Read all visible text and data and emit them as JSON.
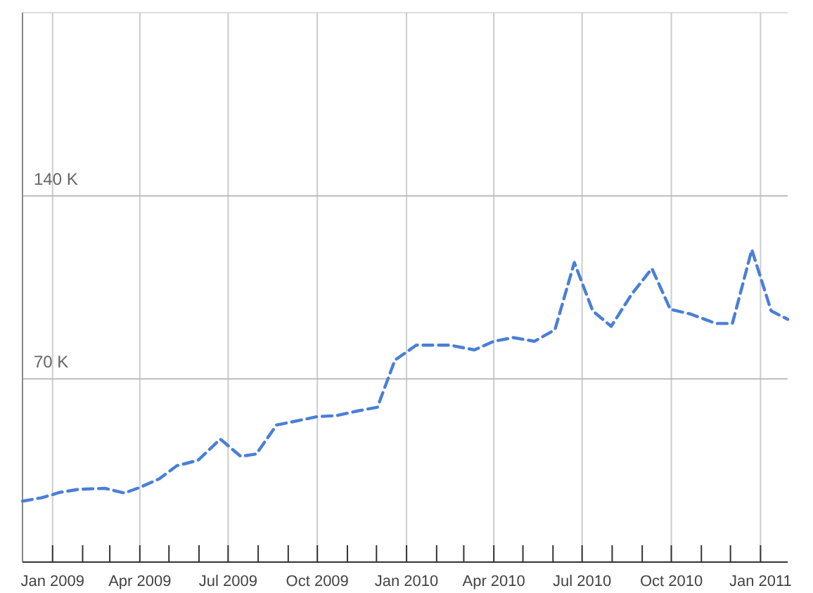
{
  "chart_data": {
    "type": "line",
    "line_style": "dashed",
    "marker": "none",
    "grid": true,
    "x": [
      "2008-12-01",
      "2008-12-21",
      "2009-01-08",
      "2009-01-28",
      "2009-02-24",
      "2009-03-16",
      "2009-03-31",
      "2009-04-21",
      "2009-05-09",
      "2009-05-31",
      "2009-06-23",
      "2009-07-14",
      "2009-07-30",
      "2009-08-20",
      "2009-09-13",
      "2009-10-01",
      "2009-10-21",
      "2009-11-12",
      "2009-12-02",
      "2009-12-20",
      "2010-01-11",
      "2010-02-15",
      "2010-03-12",
      "2010-04-01",
      "2010-04-21",
      "2010-05-13",
      "2010-06-03",
      "2010-06-23",
      "2010-07-12",
      "2010-07-31",
      "2010-08-21",
      "2010-09-11",
      "2010-09-30",
      "2010-10-21",
      "2010-11-16",
      "2010-12-03",
      "2010-12-23",
      "2011-01-12",
      "2011-01-29"
    ],
    "series": [
      {
        "color": "#4a7fd6",
        "values": [
          23300,
          24600,
          26600,
          27800,
          28200,
          26400,
          28400,
          31800,
          36800,
          38900,
          47000,
          40400,
          41300,
          52400,
          54200,
          55600,
          56000,
          57800,
          59200,
          77200,
          82900,
          82900,
          81100,
          84400,
          85800,
          84400,
          88800,
          114500,
          96000,
          90100,
          102300,
          112200,
          96600,
          94800,
          91200,
          91200,
          119400,
          96000,
          92800
        ]
      }
    ],
    "xlim": [
      "2008-12-01",
      "2011-01-29"
    ],
    "xticks": [
      {
        "value": "2009-01-01",
        "label": "Jan 2009"
      },
      {
        "value": "2009-02-01",
        "label": null
      },
      {
        "value": "2009-03-01",
        "label": null
      },
      {
        "value": "2009-04-01",
        "label": "Apr 2009"
      },
      {
        "value": "2009-05-01",
        "label": null
      },
      {
        "value": "2009-06-01",
        "label": null
      },
      {
        "value": "2009-07-01",
        "label": "Jul 2009"
      },
      {
        "value": "2009-08-01",
        "label": null
      },
      {
        "value": "2009-09-01",
        "label": null
      },
      {
        "value": "2009-10-01",
        "label": "Oct 2009"
      },
      {
        "value": "2009-11-01",
        "label": null
      },
      {
        "value": "2009-12-01",
        "label": null
      },
      {
        "value": "2010-01-01",
        "label": "Jan 2010"
      },
      {
        "value": "2010-02-01",
        "label": null
      },
      {
        "value": "2010-03-01",
        "label": null
      },
      {
        "value": "2010-04-01",
        "label": "Apr 2010"
      },
      {
        "value": "2010-05-01",
        "label": null
      },
      {
        "value": "2010-06-01",
        "label": null
      },
      {
        "value": "2010-07-01",
        "label": "Jul 2010"
      },
      {
        "value": "2010-08-01",
        "label": null
      },
      {
        "value": "2010-09-01",
        "label": null
      },
      {
        "value": "2010-10-01",
        "label": "Oct 2010"
      },
      {
        "value": "2010-11-01",
        "label": null
      },
      {
        "value": "2010-12-01",
        "label": null
      },
      {
        "value": "2011-01-01",
        "label": "Jan 2011"
      }
    ],
    "ylim": [
      0,
      210000
    ],
    "yticks": [
      {
        "value": 70000,
        "label": "70 K"
      },
      {
        "value": 140000,
        "label": "140 K"
      }
    ]
  }
}
